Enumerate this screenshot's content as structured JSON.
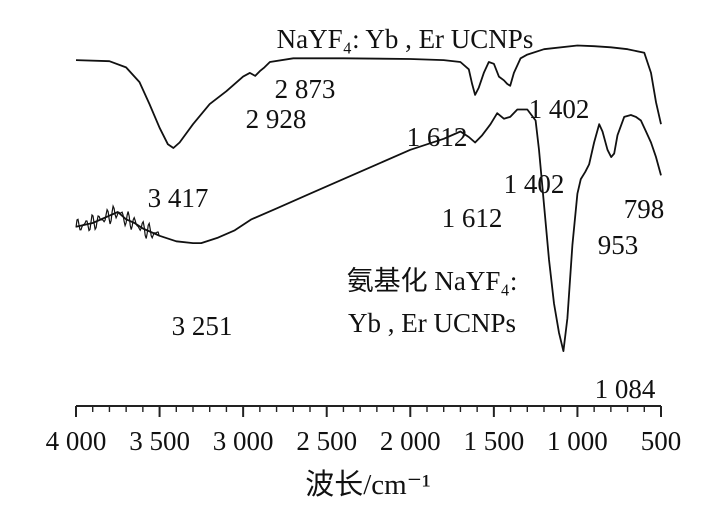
{
  "chart_data": {
    "type": "line",
    "title": "",
    "xlabel": "波长/cm⁻¹",
    "ylabel": "",
    "xlim": [
      4000,
      500
    ],
    "x_reversed": true,
    "ylim": [
      0,
      100
    ],
    "grid": false,
    "x_ticks": [
      4000,
      3500,
      3000,
      2500,
      2000,
      1500,
      1000,
      500
    ],
    "x_tick_labels": [
      "4 000",
      "3 500",
      "3 000",
      "2 500",
      "2 000",
      "1 500",
      "1 000",
      "500"
    ],
    "series": [
      {
        "name": "NaYF₄: Yb , Er UCNPs",
        "x": [
          4000,
          3800,
          3700,
          3620,
          3560,
          3500,
          3450,
          3417,
          3380,
          3300,
          3200,
          3100,
          3000,
          2960,
          2928,
          2900,
          2873,
          2840,
          2700,
          2400,
          2000,
          1800,
          1700,
          1650,
          1630,
          1612,
          1590,
          1560,
          1530,
          1500,
          1470,
          1440,
          1420,
          1402,
          1380,
          1340,
          1300,
          1200,
          1000,
          900,
          800,
          700,
          600,
          560,
          530,
          500
        ],
        "y": [
          94.5,
          94.2,
          92.5,
          88.5,
          82.5,
          76,
          71.5,
          70.5,
          72,
          77,
          82.5,
          86,
          90,
          91,
          90.2,
          91.5,
          92.5,
          94,
          95,
          95,
          94.8,
          94.5,
          94,
          92,
          88,
          85,
          87,
          91,
          94,
          93.5,
          90,
          89,
          88,
          87.5,
          91,
          95,
          96,
          97.5,
          98.5,
          98.3,
          98,
          97.5,
          96.5,
          91,
          83,
          77
        ]
      },
      {
        "name": "氨基化 NaYF₄: Yb , Er UCNPs",
        "x": [
          4000,
          3900,
          3800,
          3750,
          3700,
          3650,
          3600,
          3500,
          3400,
          3300,
          3251,
          3150,
          3050,
          2950,
          2800,
          2600,
          2400,
          2200,
          2000,
          1800,
          1700,
          1650,
          1612,
          1570,
          1520,
          1480,
          1440,
          1402,
          1360,
          1300,
          1250,
          1230,
          1200,
          1170,
          1140,
          1110,
          1084,
          1060,
          1030,
          1000,
          980,
          953,
          930,
          900,
          870,
          850,
          820,
          798,
          780,
          760,
          720,
          680,
          650,
          620,
          590,
          560,
          530,
          500
        ],
        "y": [
          49,
          50,
          52,
          53,
          51,
          50,
          48.5,
          46.5,
          45,
          44.5,
          44.5,
          46,
          48,
          51,
          54,
          58,
          62,
          66,
          70,
          73,
          75,
          73.5,
          72,
          74,
          77,
          80,
          78.5,
          79,
          81,
          81,
          78,
          70,
          55,
          40,
          28,
          20,
          15,
          24,
          44,
          58,
          62,
          64,
          66,
          72,
          77,
          75,
          70,
          68,
          69,
          74,
          79,
          79.5,
          79,
          78,
          75,
          72,
          68,
          63
        ]
      }
    ],
    "annotations": [
      "3 417",
      "2 928",
      "2 873",
      "1 612",
      "1 402",
      "3 251",
      "1 612",
      "1 402",
      "953",
      "798",
      "1 084"
    ]
  },
  "series_labels": {
    "top": "NaYF₄: Yb , Er UCNPs",
    "bottom_line1": "氨基化 NaYF₄:",
    "bottom_line2": "Yb , Er UCNPs"
  },
  "colors": {
    "line": "#111111",
    "axis": "#222222"
  }
}
